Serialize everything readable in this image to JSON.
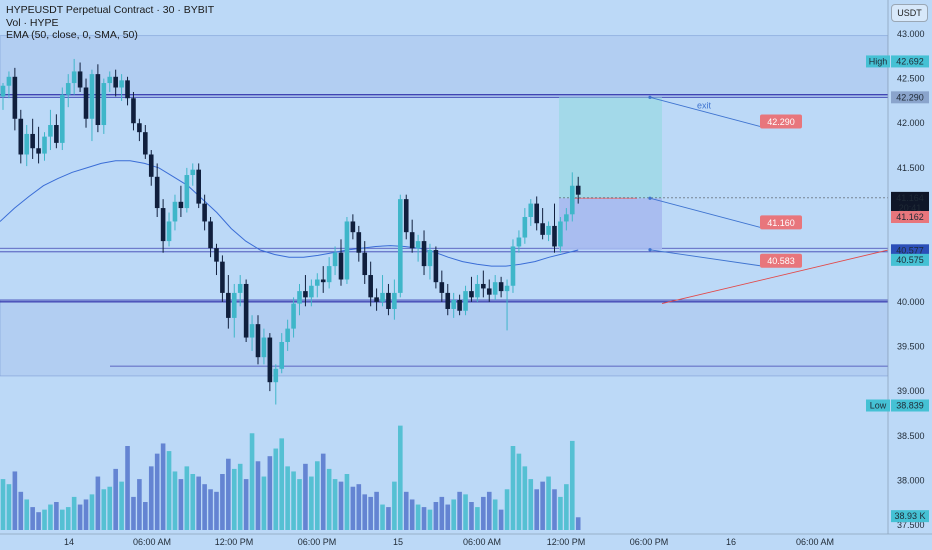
{
  "header": {
    "symbol_line": "HYPEUSDT Perpetual Contract · 30 · BYBIT",
    "vol_line": "Vol · HYPE",
    "ema_line": "EMA (50, close, 0, SMA, 50)",
    "currency_button": "USDT"
  },
  "colors": {
    "bull": "#3fb6c9",
    "bear": "#101f3d",
    "ema": "#3a6dd6",
    "volume_up": "#4fbfd1",
    "volume_down": "#5f7fd0",
    "zone_top": "#a9c4ee",
    "zone_bottom": "#a9c4ee",
    "level_line": "#2b2ba8",
    "profit_box": "#9fd8e6",
    "loss_box": "#a6b9ee",
    "label_red": "#e8767c",
    "exit_line": "#3f74d0",
    "trend_line": "#e24a4a"
  },
  "chart_data": {
    "type": "candlestick",
    "price_axis": {
      "ticks": [
        "43.000",
        "42.500",
        "42.000",
        "41.500",
        "41.000",
        "40.500",
        "40.000",
        "39.500",
        "39.000",
        "38.500",
        "38.000",
        "37.500"
      ],
      "tick_values": [
        43.0,
        42.5,
        42.0,
        41.5,
        41.0,
        40.5,
        40.0,
        39.5,
        39.0,
        38.5,
        38.0,
        37.5
      ],
      "range": [
        37.4,
        43.38
      ]
    },
    "time_axis": {
      "ticks": [
        "14",
        "06:00 AM",
        "12:00 PM",
        "06:00 PM",
        "15",
        "06:00 AM",
        "12:00 PM",
        "06:00 PM",
        "16",
        "06:00 AM"
      ]
    },
    "axis_labels": [
      {
        "text": "High",
        "value": "42.692",
        "price": 42.692,
        "style": "high"
      },
      {
        "text": "",
        "value": "42.290",
        "price": 42.29,
        "style": "gray"
      },
      {
        "text": "",
        "value": "41.164",
        "price": 41.164,
        "style": "dark"
      },
      {
        "text": "",
        "value": "20:41",
        "price": 41.05,
        "style": "dark"
      },
      {
        "text": "",
        "value": "41.162",
        "price": 40.95,
        "style": "red"
      },
      {
        "text": "",
        "value": "40.577",
        "price": 40.577,
        "style": "blue"
      },
      {
        "text": "",
        "value": "40.575",
        "price": 40.47,
        "style": "cyan"
      },
      {
        "text": "Low",
        "value": "38.839",
        "price": 38.839,
        "style": "low"
      },
      {
        "text": "",
        "value": "38.93 K",
        "price": 37.6,
        "style": "vol"
      }
    ],
    "zones": [
      {
        "name": "resistance-zone",
        "from": 42.29,
        "to": 42.98
      },
      {
        "name": "support-zone",
        "from": 39.17,
        "to": 40.02
      }
    ],
    "levels": [
      42.32,
      42.29,
      40.6,
      40.56,
      40.02,
      40.0,
      39.28
    ],
    "position": {
      "target": 42.29,
      "entry": 41.16,
      "stop": 40.583
    },
    "trade_labels": [
      {
        "text": "42.290",
        "price": 42.02
      },
      {
        "text": "41.160",
        "price": 40.89
      },
      {
        "text": "40.583",
        "price": 40.46
      }
    ],
    "annotation": "exit",
    "candles": [
      [
        42.3,
        42.45,
        42.15,
        42.42
      ],
      [
        42.42,
        42.58,
        42.28,
        42.52
      ],
      [
        42.52,
        42.62,
        41.92,
        42.05
      ],
      [
        42.05,
        42.15,
        41.55,
        41.65
      ],
      [
        41.65,
        41.98,
        41.52,
        41.88
      ],
      [
        41.88,
        42.05,
        41.6,
        41.72
      ],
      [
        41.72,
        41.96,
        41.55,
        41.66
      ],
      [
        41.66,
        41.9,
        41.58,
        41.85
      ],
      [
        41.85,
        42.15,
        41.7,
        41.98
      ],
      [
        41.98,
        42.1,
        41.72,
        41.78
      ],
      [
        41.78,
        42.4,
        41.7,
        42.32
      ],
      [
        42.32,
        42.55,
        42.18,
        42.45
      ],
      [
        42.45,
        42.72,
        42.32,
        42.58
      ],
      [
        42.58,
        42.68,
        42.35,
        42.4
      ],
      [
        42.4,
        42.5,
        41.95,
        42.05
      ],
      [
        42.05,
        42.6,
        41.8,
        42.55
      ],
      [
        42.55,
        42.66,
        41.9,
        41.98
      ],
      [
        41.98,
        42.5,
        41.88,
        42.45
      ],
      [
        42.45,
        42.58,
        42.35,
        42.52
      ],
      [
        42.52,
        42.6,
        42.3,
        42.4
      ],
      [
        42.4,
        42.55,
        42.25,
        42.48
      ],
      [
        42.48,
        42.52,
        42.2,
        42.28
      ],
      [
        42.28,
        42.35,
        41.92,
        42.0
      ],
      [
        42.0,
        42.05,
        41.8,
        41.9
      ],
      [
        41.9,
        41.98,
        41.6,
        41.65
      ],
      [
        41.65,
        41.7,
        41.3,
        41.4
      ],
      [
        41.4,
        41.55,
        40.95,
        41.05
      ],
      [
        41.05,
        41.15,
        40.55,
        40.68
      ],
      [
        40.68,
        41.0,
        40.62,
        40.9
      ],
      [
        40.9,
        41.2,
        40.8,
        41.12
      ],
      [
        41.12,
        41.3,
        40.95,
        41.05
      ],
      [
        41.05,
        41.5,
        41.0,
        41.42
      ],
      [
        41.42,
        41.55,
        41.3,
        41.48
      ],
      [
        41.48,
        41.55,
        41.05,
        41.1
      ],
      [
        41.1,
        41.2,
        40.8,
        40.9
      ],
      [
        40.9,
        40.95,
        40.5,
        40.6
      ],
      [
        40.6,
        40.65,
        40.3,
        40.45
      ],
      [
        40.45,
        40.52,
        40.0,
        40.1
      ],
      [
        40.1,
        40.3,
        39.7,
        39.82
      ],
      [
        39.82,
        40.2,
        39.6,
        40.1
      ],
      [
        40.1,
        40.3,
        39.95,
        40.2
      ],
      [
        40.2,
        40.25,
        39.55,
        39.6
      ],
      [
        39.6,
        39.85,
        39.45,
        39.75
      ],
      [
        39.75,
        39.85,
        39.3,
        39.38
      ],
      [
        39.38,
        39.7,
        39.3,
        39.6
      ],
      [
        39.6,
        39.65,
        39.0,
        39.1
      ],
      [
        39.1,
        39.3,
        38.85,
        39.25
      ],
      [
        39.25,
        39.65,
        39.2,
        39.55
      ],
      [
        39.55,
        39.8,
        39.45,
        39.7
      ],
      [
        39.7,
        40.05,
        39.6,
        39.98
      ],
      [
        39.98,
        40.2,
        39.85,
        40.12
      ],
      [
        40.12,
        40.3,
        39.95,
        40.05
      ],
      [
        40.05,
        40.25,
        39.95,
        40.18
      ],
      [
        40.18,
        40.32,
        40.05,
        40.25
      ],
      [
        40.25,
        40.4,
        40.1,
        40.22
      ],
      [
        40.22,
        40.5,
        40.15,
        40.4
      ],
      [
        40.4,
        40.62,
        40.3,
        40.55
      ],
      [
        40.55,
        40.7,
        40.18,
        40.25
      ],
      [
        40.25,
        40.95,
        40.2,
        40.9
      ],
      [
        40.9,
        40.98,
        40.7,
        40.78
      ],
      [
        40.78,
        40.85,
        40.45,
        40.55
      ],
      [
        40.55,
        40.68,
        40.2,
        40.3
      ],
      [
        40.3,
        40.45,
        39.95,
        40.05
      ],
      [
        40.05,
        40.15,
        39.9,
        40.0
      ],
      [
        40.0,
        40.3,
        39.95,
        40.1
      ],
      [
        40.1,
        40.2,
        39.85,
        39.92
      ],
      [
        39.92,
        40.25,
        39.8,
        40.1
      ],
      [
        40.1,
        41.2,
        40.05,
        41.15
      ],
      [
        41.15,
        41.2,
        40.7,
        40.78
      ],
      [
        40.78,
        40.92,
        40.55,
        40.6
      ],
      [
        40.6,
        40.75,
        40.45,
        40.68
      ],
      [
        40.68,
        40.8,
        40.3,
        40.4
      ],
      [
        40.4,
        40.65,
        40.25,
        40.58
      ],
      [
        40.58,
        40.62,
        40.15,
        40.22
      ],
      [
        40.22,
        40.35,
        40.0,
        40.1
      ],
      [
        40.1,
        40.2,
        39.85,
        39.92
      ],
      [
        39.92,
        40.1,
        39.82,
        40.02
      ],
      [
        40.02,
        40.08,
        39.85,
        39.9
      ],
      [
        39.9,
        40.18,
        39.85,
        40.12
      ],
      [
        40.12,
        40.28,
        40.0,
        40.05
      ],
      [
        40.05,
        40.3,
        40.0,
        40.2
      ],
      [
        40.2,
        40.35,
        40.05,
        40.15
      ],
      [
        40.15,
        40.25,
        40.0,
        40.08
      ],
      [
        40.08,
        40.3,
        40.02,
        40.22
      ],
      [
        40.22,
        40.28,
        40.05,
        40.12
      ],
      [
        40.12,
        40.25,
        39.68,
        40.18
      ],
      [
        40.18,
        40.7,
        40.1,
        40.62
      ],
      [
        40.62,
        40.8,
        40.55,
        40.72
      ],
      [
        40.72,
        41.05,
        40.65,
        40.95
      ],
      [
        40.95,
        41.15,
        40.85,
        41.1
      ],
      [
        41.1,
        41.18,
        40.8,
        40.88
      ],
      [
        40.88,
        41.05,
        40.7,
        40.75
      ],
      [
        40.75,
        40.9,
        40.68,
        40.85
      ],
      [
        40.85,
        41.1,
        40.55,
        40.62
      ],
      [
        40.62,
        40.95,
        40.55,
        40.9
      ],
      [
        40.9,
        41.05,
        40.8,
        40.98
      ],
      [
        40.98,
        41.45,
        40.9,
        41.3
      ],
      [
        41.3,
        41.4,
        41.1,
        41.2
      ]
    ],
    "ema_points": [
      40.9,
      41.05,
      41.18,
      41.3,
      41.38,
      41.45,
      41.5,
      41.55,
      41.58,
      41.58,
      41.55,
      41.5,
      41.4,
      41.3,
      41.15,
      41.0,
      40.82,
      40.68,
      40.58,
      40.53,
      40.5,
      40.5,
      40.52,
      40.55,
      40.58,
      40.6,
      40.62,
      40.63,
      40.62,
      40.6,
      40.56,
      40.5,
      40.45,
      40.42,
      40.4,
      40.4,
      40.42,
      40.45,
      40.5,
      40.54,
      40.58
    ],
    "volumes": [
      2.0,
      1.8,
      2.3,
      1.5,
      1.2,
      0.9,
      0.7,
      0.8,
      1.0,
      1.1,
      0.8,
      0.9,
      1.3,
      1.0,
      1.2,
      1.4,
      2.1,
      1.6,
      1.7,
      2.4,
      1.9,
      3.3,
      1.3,
      2.0,
      1.1,
      2.5,
      3.0,
      3.4,
      3.1,
      2.3,
      2.0,
      2.5,
      2.2,
      2.1,
      1.8,
      1.6,
      1.5,
      2.2,
      2.8,
      2.4,
      2.6,
      2.0,
      3.8,
      2.7,
      2.1,
      2.9,
      3.2,
      3.6,
      2.5,
      2.3,
      2.0,
      2.6,
      2.1,
      2.7,
      3.0,
      2.4,
      2.0,
      1.9,
      2.2,
      1.7,
      1.8,
      1.4,
      1.3,
      1.5,
      1.0,
      0.9,
      1.9,
      4.1,
      1.5,
      1.2,
      1.0,
      0.9,
      0.8,
      1.1,
      1.3,
      1.0,
      1.2,
      1.5,
      1.4,
      1.1,
      0.9,
      1.3,
      1.5,
      1.2,
      0.8,
      1.6,
      3.3,
      3.0,
      2.5,
      2.0,
      1.6,
      1.9,
      2.1,
      1.6,
      1.3,
      1.8,
      3.5,
      0.5
    ]
  }
}
